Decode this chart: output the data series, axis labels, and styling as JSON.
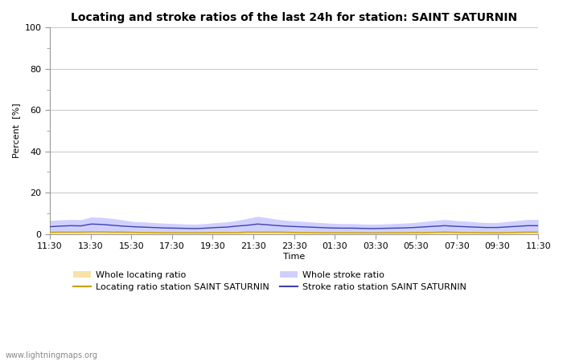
{
  "title": "Locating and stroke ratios of the last 24h for station: SAINT SATURNIN",
  "xlabel": "Time",
  "ylabel": "Percent  [%]",
  "ylim": [
    0,
    100
  ],
  "yticks": [
    0,
    20,
    40,
    60,
    80,
    100
  ],
  "ytick_minor": [
    10,
    30,
    50,
    70,
    90
  ],
  "x_labels": [
    "11:30",
    "13:30",
    "15:30",
    "17:30",
    "19:30",
    "21:30",
    "23:30",
    "01:30",
    "03:30",
    "05:30",
    "07:30",
    "09:30",
    "11:30"
  ],
  "background_color": "#ffffff",
  "plot_bg_color": "#ffffff",
  "grid_color": "#cccccc",
  "watermark": "www.lightningmaps.org",
  "whole_locating_color": "#f5dfa0",
  "whole_locating_alpha": 0.9,
  "whole_stroke_color": "#c8c8ff",
  "whole_stroke_alpha": 0.85,
  "locating_line_color": "#c8a000",
  "stroke_line_color": "#4040b0",
  "title_fontsize": 10,
  "axis_fontsize": 8,
  "tick_fontsize": 8,
  "legend_fontsize": 8,
  "whole_stroke_values": [
    6.5,
    6.8,
    7.0,
    6.9,
    8.2,
    8.0,
    7.5,
    6.8,
    6.0,
    5.8,
    5.5,
    5.2,
    5.0,
    4.8,
    4.7,
    5.0,
    5.5,
    5.8,
    6.5,
    7.5,
    8.5,
    7.8,
    7.0,
    6.5,
    6.2,
    5.8,
    5.5,
    5.2,
    5.0,
    5.0,
    4.8,
    4.7,
    4.8,
    5.0,
    5.2,
    5.5,
    6.0,
    6.5,
    7.0,
    6.5,
    6.2,
    5.8,
    5.5,
    5.5,
    6.0,
    6.5,
    7.0,
    7.0
  ],
  "whole_locating_values": [
    1.2,
    1.3,
    1.4,
    1.3,
    1.5,
    1.5,
    1.4,
    1.3,
    1.2,
    1.1,
    1.0,
    1.0,
    0.9,
    0.9,
    0.9,
    0.9,
    1.0,
    1.0,
    1.1,
    1.3,
    1.4,
    1.4,
    1.3,
    1.2,
    1.1,
    1.0,
    1.0,
    0.9,
    0.9,
    0.9,
    0.9,
    0.8,
    0.9,
    0.9,
    1.0,
    1.0,
    1.1,
    1.2,
    1.3,
    1.2,
    1.1,
    1.0,
    1.0,
    1.0,
    1.1,
    1.2,
    1.3,
    1.3
  ],
  "stroke_line_values": [
    3.5,
    3.8,
    4.0,
    3.9,
    4.8,
    4.6,
    4.2,
    3.8,
    3.5,
    3.3,
    3.1,
    2.9,
    2.8,
    2.7,
    2.6,
    2.8,
    3.1,
    3.3,
    3.8,
    4.2,
    4.8,
    4.4,
    4.0,
    3.7,
    3.5,
    3.3,
    3.1,
    2.9,
    2.8,
    2.8,
    2.7,
    2.6,
    2.7,
    2.8,
    2.9,
    3.1,
    3.4,
    3.7,
    4.0,
    3.7,
    3.5,
    3.3,
    3.1,
    3.1,
    3.4,
    3.7,
    4.0,
    4.0
  ],
  "locating_line_values": [
    0.8,
    0.9,
    0.9,
    0.9,
    1.0,
    1.0,
    0.9,
    0.9,
    0.8,
    0.7,
    0.7,
    0.6,
    0.6,
    0.6,
    0.6,
    0.6,
    0.7,
    0.7,
    0.7,
    0.9,
    0.9,
    0.9,
    0.9,
    0.8,
    0.7,
    0.7,
    0.6,
    0.6,
    0.6,
    0.6,
    0.6,
    0.5,
    0.6,
    0.6,
    0.6,
    0.7,
    0.7,
    0.8,
    0.9,
    0.8,
    0.7,
    0.7,
    0.6,
    0.6,
    0.7,
    0.8,
    0.9,
    0.9
  ]
}
